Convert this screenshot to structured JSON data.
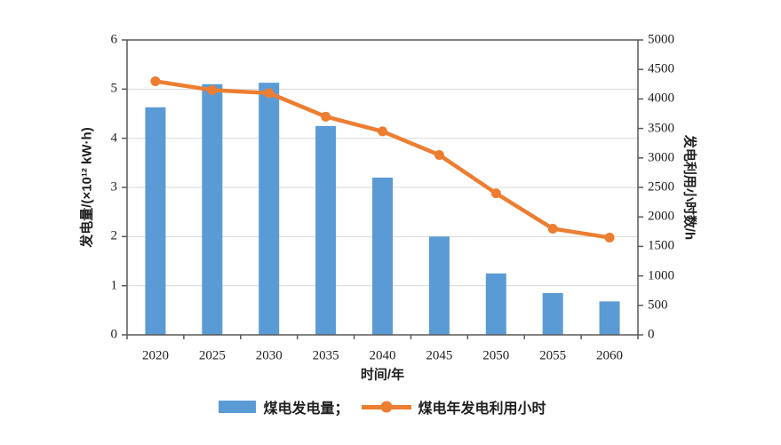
{
  "colors": {
    "bar": "#5b9bd5",
    "line": "#ed7d31",
    "axis": "#595959",
    "grid": "#d9d9d9",
    "text": "#1f1f1f",
    "background": "#ffffff"
  },
  "chart_data": {
    "type": "bar+line",
    "categories": [
      "2020",
      "2025",
      "2030",
      "2035",
      "2040",
      "2045",
      "2050",
      "2055",
      "2060"
    ],
    "series": [
      {
        "name": "煤电发电量",
        "type": "bar",
        "axis": "left",
        "values": [
          4.63,
          5.1,
          5.13,
          4.25,
          3.2,
          2.0,
          1.25,
          0.85,
          0.68
        ]
      },
      {
        "name": "煤电年发电利用小时",
        "type": "line",
        "axis": "right",
        "values": [
          4300,
          4150,
          4100,
          3700,
          3450,
          3050,
          2400,
          1800,
          1650
        ]
      }
    ],
    "left_axis": {
      "label": "发电量/(×10¹² kW·h)",
      "min": 0,
      "max": 6,
      "step": 1
    },
    "right_axis": {
      "label": "发电利用小时数/h",
      "min": 0,
      "max": 5000,
      "step": 500
    },
    "xlabel": "时间/年",
    "grid": "horizontal",
    "legend_position": "bottom",
    "legend": [
      {
        "label": "煤电发电量；",
        "swatch": "bar"
      },
      {
        "label": "煤电年发电利用小时",
        "swatch": "line"
      }
    ]
  }
}
